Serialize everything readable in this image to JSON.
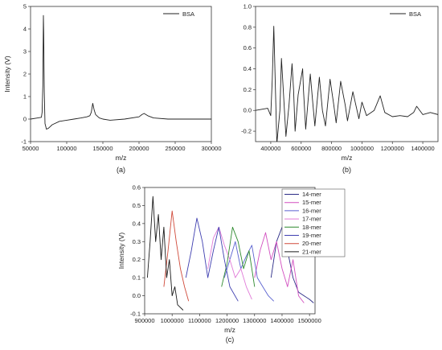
{
  "chart_data": [
    {
      "id": "a",
      "type": "line",
      "caption": "(a)",
      "xlabel": "m/z",
      "ylabel": "Intensity (V)",
      "xlim": [
        50000,
        300000
      ],
      "ylim": [
        -1,
        5
      ],
      "xticks": [
        50000,
        100000,
        150000,
        200000,
        250000,
        300000
      ],
      "yticks": [
        -1,
        0,
        1,
        2,
        3,
        4,
        5
      ],
      "legend": {
        "position": "top-right",
        "entries": [
          "BSA"
        ]
      },
      "series": [
        {
          "name": "BSA",
          "color": "#222222",
          "x": [
            50000,
            60000,
            65000,
            66000,
            67000,
            67800,
            68200,
            69000,
            70000,
            72000,
            75000,
            80000,
            90000,
            100000,
            110000,
            120000,
            128000,
            132000,
            134000,
            135000,
            136000,
            137000,
            138000,
            140000,
            145000,
            150000,
            160000,
            180000,
            200000,
            204000,
            207000,
            212000,
            220000,
            240000,
            260000,
            280000,
            300000
          ],
          "y": [
            0.0,
            0.05,
            0.08,
            0.3,
            1.5,
            4.6,
            3.8,
            1.2,
            -0.2,
            -0.45,
            -0.4,
            -0.25,
            -0.1,
            -0.05,
            0.0,
            0.05,
            0.1,
            0.15,
            0.3,
            0.5,
            0.7,
            0.55,
            0.4,
            0.2,
            0.05,
            0.0,
            -0.05,
            0.0,
            0.1,
            0.2,
            0.25,
            0.15,
            0.05,
            0.0,
            0.0,
            0.0,
            0.0
          ]
        }
      ]
    },
    {
      "id": "b",
      "type": "line",
      "caption": "(b)",
      "xlabel": "m/z",
      "ylabel": "",
      "xlim": [
        300000,
        1500000
      ],
      "ylim": [
        -0.3,
        1.0
      ],
      "xticks": [
        400000,
        600000,
        800000,
        1000000,
        1200000,
        1400000
      ],
      "yticks": [
        -0.2,
        0.0,
        0.2,
        0.4,
        0.6,
        0.8,
        1.0
      ],
      "legend": {
        "position": "top-right",
        "entries": [
          "BSA"
        ]
      },
      "series": [
        {
          "name": "BSA",
          "color": "#222222",
          "x": [
            300000,
            380000,
            400000,
            410000,
            420000,
            440000,
            460000,
            470000,
            480000,
            500000,
            520000,
            540000,
            550000,
            560000,
            580000,
            610000,
            615000,
            630000,
            660000,
            675000,
            690000,
            720000,
            740000,
            760000,
            790000,
            815000,
            830000,
            860000,
            890000,
            905000,
            940000,
            980000,
            1000000,
            1030000,
            1080000,
            1120000,
            1150000,
            1200000,
            1250000,
            1300000,
            1340000,
            1360000,
            1400000,
            1450000,
            1500000
          ],
          "y": [
            0.0,
            0.02,
            -0.05,
            0.3,
            0.81,
            -0.32,
            0.0,
            0.5,
            0.25,
            -0.25,
            0.05,
            0.45,
            0.2,
            -0.2,
            0.15,
            0.4,
            0.2,
            -0.18,
            0.35,
            0.1,
            -0.15,
            0.32,
            0.0,
            -0.15,
            0.3,
            0.05,
            -0.12,
            0.28,
            0.05,
            -0.1,
            0.18,
            -0.08,
            0.08,
            -0.05,
            0.0,
            0.14,
            -0.02,
            -0.06,
            -0.05,
            -0.06,
            -0.02,
            0.04,
            -0.04,
            -0.02,
            -0.04
          ]
        }
      ]
    },
    {
      "id": "c",
      "type": "line",
      "caption": "(c)",
      "xlabel": "m/z",
      "ylabel": "Intensity (V)",
      "xlim": [
        900000,
        1520000
      ],
      "ylim": [
        -0.1,
        0.6
      ],
      "xticks": [
        900000,
        1000000,
        1100000,
        1200000,
        1300000,
        1400000,
        1500000
      ],
      "yticks": [
        -0.1,
        0.0,
        0.1,
        0.2,
        0.3,
        0.4,
        0.5,
        0.6
      ],
      "legend": {
        "position": "top-right",
        "entries": [
          "14-mer",
          "15-mer",
          "16-mer",
          "17-mer",
          "18-mer",
          "19-mer",
          "20-mer",
          "21-mer"
        ]
      },
      "series": [
        {
          "name": "14-mer",
          "color": "#2b2b86",
          "x": [
            1360000,
            1380000,
            1400000,
            1420000,
            1440000,
            1460000,
            1480000,
            1500000,
            1515000
          ],
          "y": [
            0.1,
            0.3,
            0.38,
            0.25,
            0.1,
            0.02,
            0.0,
            -0.02,
            -0.04
          ]
        },
        {
          "name": "15-mer",
          "color": "#d24fc0",
          "x": [
            1300000,
            1320000,
            1340000,
            1360000,
            1380000,
            1400000,
            1420000,
            1440000,
            1460000,
            1480000
          ],
          "y": [
            0.1,
            0.25,
            0.35,
            0.2,
            0.3,
            0.15,
            0.05,
            0.2,
            0.0,
            -0.04
          ]
        },
        {
          "name": "16-mer",
          "color": "#5a62d0",
          "x": [
            1190000,
            1210000,
            1230000,
            1250000,
            1270000,
            1290000,
            1310000,
            1330000,
            1350000,
            1370000
          ],
          "y": [
            0.1,
            0.2,
            0.3,
            0.15,
            0.22,
            0.28,
            0.1,
            0.05,
            0.0,
            -0.03
          ]
        },
        {
          "name": "17-mer",
          "color": "#e07ad8",
          "x": [
            1130000,
            1150000,
            1170000,
            1190000,
            1210000,
            1230000,
            1250000,
            1270000,
            1290000
          ],
          "y": [
            0.15,
            0.32,
            0.38,
            0.28,
            0.2,
            0.1,
            0.15,
            0.05,
            -0.02
          ]
        },
        {
          "name": "18-mer",
          "color": "#2f8a2f",
          "x": [
            1180000,
            1200000,
            1220000,
            1240000,
            1260000,
            1280000,
            1300000
          ],
          "y": [
            0.05,
            0.18,
            0.38,
            0.3,
            0.15,
            0.25,
            0.05
          ]
        },
        {
          "name": "19-mer",
          "color": "#3f3fb0",
          "x": [
            1050000,
            1070000,
            1090000,
            1110000,
            1130000,
            1150000,
            1170000,
            1190000,
            1210000,
            1240000
          ],
          "y": [
            0.1,
            0.25,
            0.43,
            0.3,
            0.1,
            0.25,
            0.38,
            0.2,
            0.05,
            -0.03
          ]
        },
        {
          "name": "20-mer",
          "color": "#d04a3a",
          "x": [
            970000,
            985000,
            1000000,
            1015000,
            1030000,
            1045000,
            1060000
          ],
          "y": [
            0.05,
            0.25,
            0.47,
            0.3,
            0.15,
            0.05,
            -0.03
          ]
        },
        {
          "name": "21-mer",
          "color": "#1a1a1a",
          "x": [
            910000,
            920000,
            930000,
            940000,
            950000,
            960000,
            970000,
            980000,
            990000,
            1000000,
            1010000,
            1020000,
            1040000
          ],
          "y": [
            0.1,
            0.3,
            0.55,
            0.3,
            0.45,
            0.2,
            0.38,
            0.1,
            0.2,
            0.0,
            0.05,
            -0.05,
            -0.08
          ]
        }
      ]
    }
  ]
}
